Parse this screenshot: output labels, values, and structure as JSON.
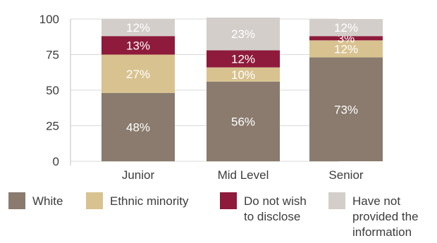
{
  "chart_data": {
    "type": "bar",
    "stacked": true,
    "title": "",
    "xlabel": "",
    "ylabel": "",
    "categories": [
      "Junior",
      "Mid Level",
      "Senior"
    ],
    "ylim": [
      0,
      100
    ],
    "yticks": [
      0,
      25,
      50,
      75,
      100
    ],
    "grid": true,
    "legend_position": "bottom",
    "series": [
      {
        "name": "White",
        "values": [
          48,
          56,
          73
        ],
        "labels": [
          "48%",
          "56%",
          "73%"
        ],
        "color": "#8a7b6e"
      },
      {
        "name": "Ethnic minority",
        "values": [
          27,
          10,
          12
        ],
        "labels": [
          "27%",
          "10%",
          "12%"
        ],
        "color": "#d8c290"
      },
      {
        "name": "Do not wish to disclose",
        "values": [
          13,
          12,
          3
        ],
        "labels": [
          "13%",
          "12%",
          "3%"
        ],
        "color": "#8e1b3c"
      },
      {
        "name": "Have not provided the information",
        "values": [
          12,
          23,
          12
        ],
        "labels": [
          "12%",
          "23%",
          "12%"
        ],
        "color": "#d3ceca"
      }
    ]
  }
}
